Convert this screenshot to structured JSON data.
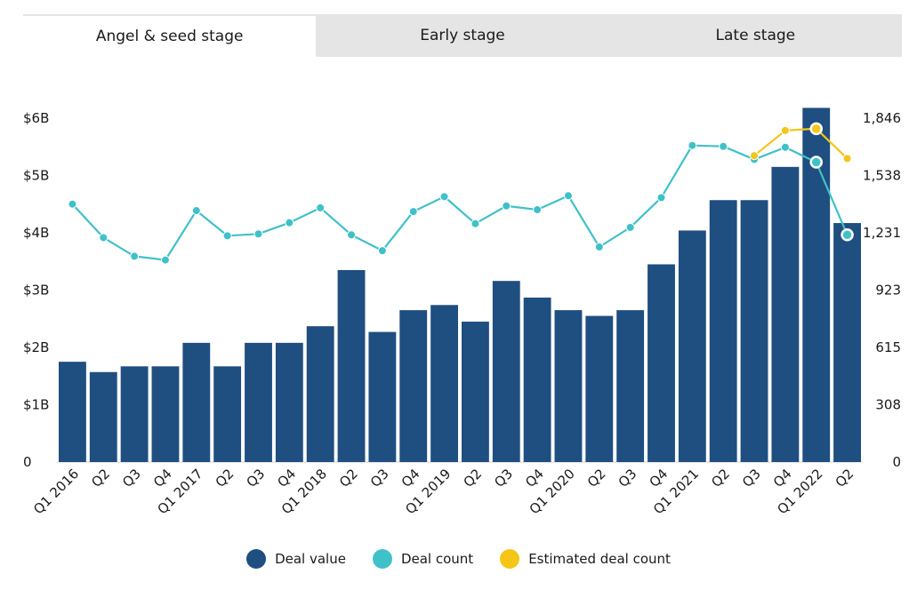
{
  "tabs": [
    {
      "label": "Angel & seed stage",
      "active": true
    },
    {
      "label": "Early stage",
      "active": false
    },
    {
      "label": "Late stage",
      "active": false
    }
  ],
  "colors": {
    "deal_value": "#1f4e80",
    "deal_count": "#3fc1c9",
    "estimated": "#f5c518"
  },
  "chart_data": {
    "type": "bar",
    "categories": [
      "Q1 2016",
      "Q2",
      "Q3",
      "Q4",
      "Q1 2017",
      "Q2",
      "Q3",
      "Q4",
      "Q1 2018",
      "Q2",
      "Q3",
      "Q4",
      "Q1 2019",
      "Q2",
      "Q3",
      "Q4",
      "Q1 2020",
      "Q2",
      "Q3",
      "Q4",
      "Q1 2021",
      "Q2",
      "Q3",
      "Q4",
      "Q1 2022",
      "Q2"
    ],
    "series": [
      {
        "name": "Deal value",
        "kind": "bar",
        "axis": "left",
        "values": [
          1.75,
          1.57,
          1.67,
          1.67,
          2.08,
          1.67,
          2.08,
          2.08,
          2.37,
          3.35,
          2.27,
          2.65,
          2.74,
          2.45,
          3.16,
          2.87,
          2.65,
          2.55,
          2.65,
          3.45,
          4.04,
          4.57,
          4.57,
          5.15,
          6.18,
          4.17
        ]
      },
      {
        "name": "Deal count",
        "kind": "line",
        "axis": "right",
        "values": [
          1385,
          1205,
          1105,
          1085,
          1350,
          1215,
          1225,
          1285,
          1365,
          1220,
          1135,
          1345,
          1425,
          1280,
          1375,
          1355,
          1430,
          1155,
          1260,
          1420,
          1700,
          1695,
          1625,
          1690,
          1610,
          1220
        ]
      },
      {
        "name": "Estimated deal count",
        "kind": "line",
        "axis": "right",
        "values": [
          null,
          null,
          null,
          null,
          null,
          null,
          null,
          null,
          null,
          null,
          null,
          null,
          null,
          null,
          null,
          null,
          null,
          null,
          null,
          null,
          null,
          null,
          1645,
          1780,
          1790,
          1630
        ]
      }
    ],
    "y_left": {
      "ticks": [
        "0",
        "$1B",
        "$2B",
        "$3B",
        "$4B",
        "$5B",
        "$6B"
      ],
      "ylim": [
        0,
        6.2
      ]
    },
    "y_right": {
      "ticks": [
        "0",
        "308",
        "615",
        "923",
        "1,231",
        "1,538",
        "1,846"
      ],
      "ylim": [
        0,
        1908
      ]
    },
    "legend": {
      "position": "bottom-center"
    }
  }
}
